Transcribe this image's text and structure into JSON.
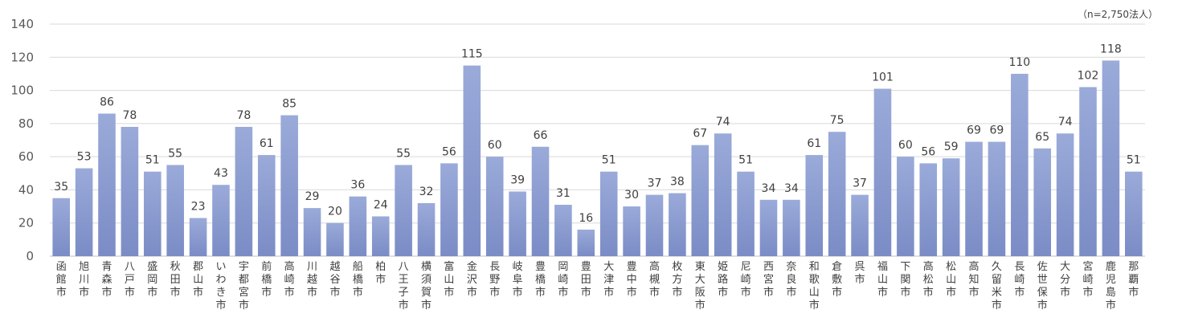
{
  "note": "（n=2,750法人）",
  "colors": {
    "bar_top": "#9aaad9",
    "bar_bottom": "#7b8cc6",
    "grid": "#d9d9d9",
    "axis": "#bfbfbf"
  },
  "chart_data": {
    "type": "bar",
    "title": "",
    "xlabel": "",
    "ylabel": "",
    "ylim": [
      0,
      140
    ],
    "yticks": [
      0,
      20,
      40,
      60,
      80,
      100,
      120,
      140
    ],
    "grid": true,
    "legend": "none",
    "categories": [
      "函館市",
      "旭川市",
      "青森市",
      "八戸市",
      "盛岡市",
      "秋田市",
      "郡山市",
      "いわき市",
      "宇都宮市",
      "前橋市",
      "高崎市",
      "川越市",
      "越谷市",
      "船橋市",
      "柏市",
      "八王子市",
      "横須賀市",
      "富山市",
      "金沢市",
      "長野市",
      "岐阜市",
      "豊橋市",
      "岡崎市",
      "豊田市",
      "大津市",
      "豊中市",
      "高槻市",
      "枚方市",
      "東大阪市",
      "姫路市",
      "尼崎市",
      "西宮市",
      "奈良市",
      "和歌山市",
      "倉敷市",
      "呉市",
      "福山市",
      "下関市",
      "高松市",
      "松山市",
      "高知市",
      "久留米市",
      "長崎市",
      "佐世保市",
      "大分市",
      "宮崎市",
      "鹿児島市",
      "那覇市"
    ],
    "values": [
      35,
      53,
      86,
      78,
      51,
      55,
      23,
      43,
      78,
      61,
      85,
      29,
      20,
      36,
      24,
      55,
      32,
      56,
      115,
      60,
      39,
      66,
      31,
      16,
      51,
      30,
      37,
      38,
      67,
      74,
      51,
      34,
      34,
      61,
      75,
      37,
      101,
      60,
      56,
      59,
      69,
      69,
      110,
      65,
      74,
      102,
      118,
      51
    ]
  }
}
